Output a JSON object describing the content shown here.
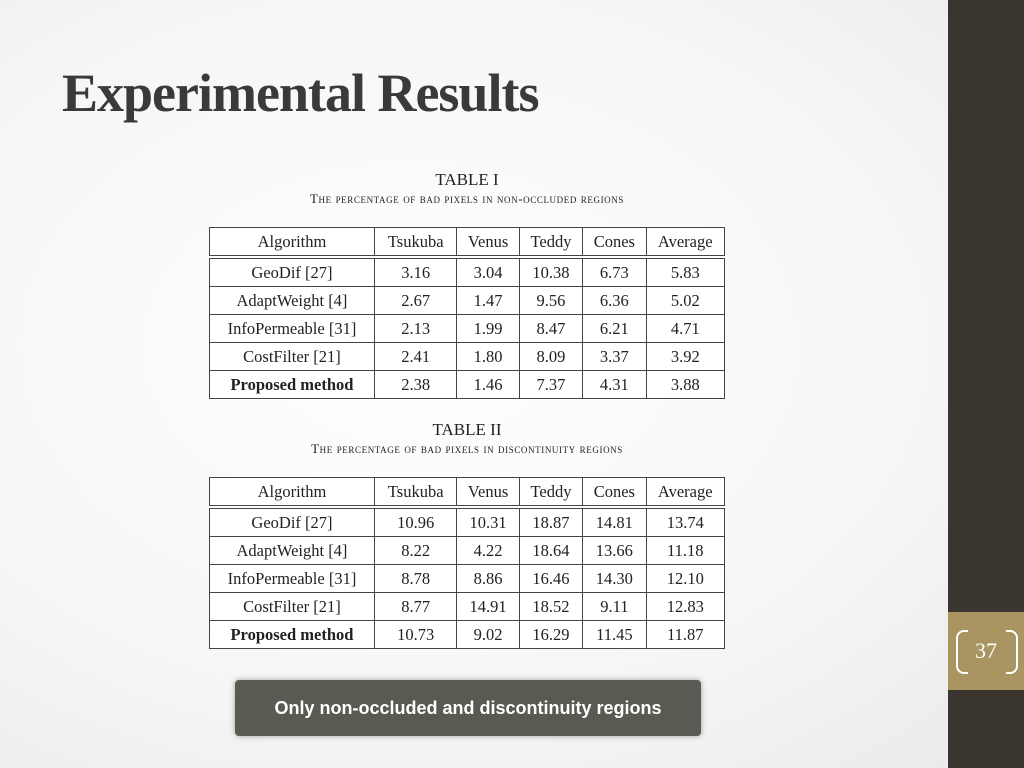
{
  "slide": {
    "title": "Experimental Results",
    "page_number": "37",
    "note": "Only non-occluded and discontinuity regions"
  },
  "tables": [
    {
      "caption_number": "TABLE I",
      "caption_text": "The percentage of bad pixels in non-occluded regions",
      "headers": [
        "Algorithm",
        "Tsukuba",
        "Venus",
        "Teddy",
        "Cones",
        "Average"
      ],
      "rows": [
        [
          "GeoDif [27]",
          "3.16",
          "3.04",
          "10.38",
          "6.73",
          "5.83"
        ],
        [
          "AdaptWeight [4]",
          "2.67",
          "1.47",
          "9.56",
          "6.36",
          "5.02"
        ],
        [
          "InfoPermeable [31]",
          "2.13",
          "1.99",
          "8.47",
          "6.21",
          "4.71"
        ],
        [
          "CostFilter [21]",
          "2.41",
          "1.80",
          "8.09",
          "3.37",
          "3.92"
        ],
        [
          "Proposed method",
          "2.38",
          "1.46",
          "7.37",
          "4.31",
          "3.88"
        ]
      ]
    },
    {
      "caption_number": "TABLE II",
      "caption_text": "The percentage of bad pixels in discontinuity regions",
      "headers": [
        "Algorithm",
        "Tsukuba",
        "Venus",
        "Teddy",
        "Cones",
        "Average"
      ],
      "rows": [
        [
          "GeoDif [27]",
          "10.96",
          "10.31",
          "18.87",
          "14.81",
          "13.74"
        ],
        [
          "AdaptWeight [4]",
          "8.22",
          "4.22",
          "18.64",
          "13.66",
          "11.18"
        ],
        [
          "InfoPermeable [31]",
          "8.78",
          "8.86",
          "16.46",
          "14.30",
          "12.10"
        ],
        [
          "CostFilter [21]",
          "8.77",
          "14.91",
          "18.52",
          "9.11",
          "12.83"
        ],
        [
          "Proposed method",
          "10.73",
          "9.02",
          "16.29",
          "11.45",
          "11.87"
        ]
      ]
    }
  ]
}
